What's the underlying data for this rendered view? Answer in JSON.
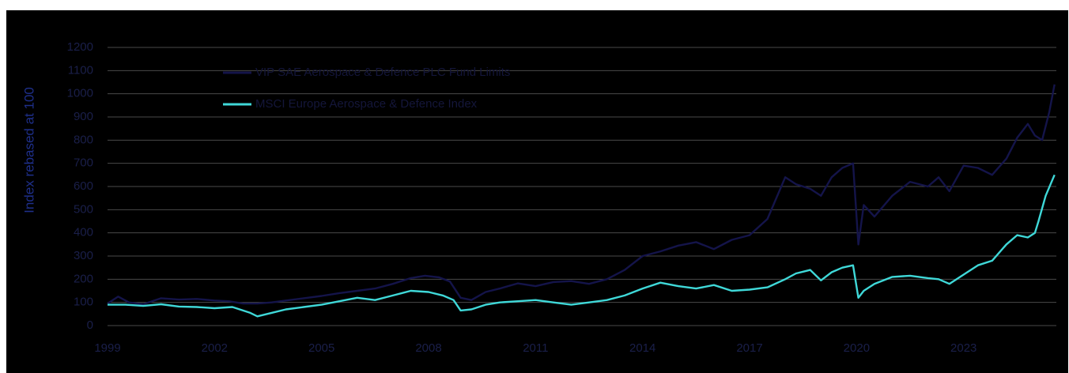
{
  "chart_data": {
    "type": "line",
    "title": "",
    "xlabel": "",
    "ylabel": "Index rebased at 100",
    "ylim": [
      0,
      1200
    ],
    "yticks": [
      0,
      100,
      200,
      300,
      400,
      500,
      600,
      700,
      800,
      900,
      1000,
      1100,
      1200
    ],
    "xlim": [
      1999.0,
      2025.6
    ],
    "xticks": [
      1999,
      2002,
      2005,
      2008,
      2011,
      2014,
      2017,
      2020,
      2023
    ],
    "grid": "horizontal",
    "legend_position": "top-left",
    "series": [
      {
        "name": "VIP SAE Aerospace & Defence PLC Fund Limits",
        "color": "#14144a",
        "x": [
          1999.0,
          1999.3,
          1999.6,
          2000.0,
          2000.5,
          2001.0,
          2001.5,
          2002.0,
          2002.4,
          2002.8,
          2003.2,
          2003.6,
          2004.0,
          2004.5,
          2005.0,
          2005.5,
          2006.0,
          2006.5,
          2007.0,
          2007.5,
          2007.9,
          2008.3,
          2008.6,
          2008.9,
          2009.2,
          2009.6,
          2010.0,
          2010.5,
          2011.0,
          2011.5,
          2012.0,
          2012.5,
          2013.0,
          2013.5,
          2014.0,
          2014.5,
          2015.0,
          2015.5,
          2016.0,
          2016.5,
          2017.0,
          2017.5,
          2018.0,
          2018.3,
          2018.7,
          2019.0,
          2019.3,
          2019.6,
          2019.9,
          2020.05,
          2020.2,
          2020.5,
          2021.0,
          2021.5,
          2022.0,
          2022.3,
          2022.6,
          2023.0,
          2023.4,
          2023.8,
          2024.2,
          2024.5,
          2024.8,
          2025.0,
          2025.2,
          2025.4,
          2025.55
        ],
        "y": [
          95,
          125,
          100,
          92,
          118,
          112,
          115,
          108,
          105,
          95,
          95,
          100,
          108,
          118,
          128,
          140,
          150,
          160,
          180,
          205,
          215,
          208,
          190,
          120,
          110,
          145,
          160,
          182,
          170,
          188,
          192,
          180,
          200,
          240,
          300,
          320,
          345,
          360,
          330,
          370,
          390,
          460,
          640,
          610,
          590,
          560,
          640,
          680,
          700,
          350,
          520,
          470,
          560,
          620,
          600,
          640,
          580,
          690,
          680,
          650,
          720,
          810,
          870,
          820,
          800,
          920,
          1040
        ]
      },
      {
        "name": "MSCI Europe Aerospace & Defence Index",
        "color": "#3fd8d8",
        "x": [
          1999.0,
          1999.5,
          2000.0,
          2000.5,
          2001.0,
          2001.5,
          2002.0,
          2002.5,
          2003.0,
          2003.2,
          2003.6,
          2004.0,
          2004.5,
          2005.0,
          2005.5,
          2006.0,
          2006.5,
          2007.0,
          2007.5,
          2008.0,
          2008.4,
          2008.7,
          2008.9,
          2009.2,
          2009.6,
          2010.0,
          2010.5,
          2011.0,
          2011.5,
          2012.0,
          2012.5,
          2013.0,
          2013.5,
          2014.0,
          2014.5,
          2015.0,
          2015.5,
          2016.0,
          2016.5,
          2017.0,
          2017.5,
          2018.0,
          2018.3,
          2018.7,
          2019.0,
          2019.3,
          2019.6,
          2019.9,
          2020.05,
          2020.2,
          2020.5,
          2021.0,
          2021.5,
          2022.0,
          2022.3,
          2022.6,
          2023.0,
          2023.4,
          2023.8,
          2024.2,
          2024.5,
          2024.8,
          2025.0,
          2025.1,
          2025.3,
          2025.55
        ],
        "y": [
          90,
          90,
          85,
          92,
          82,
          80,
          75,
          80,
          55,
          40,
          55,
          70,
          80,
          90,
          105,
          120,
          110,
          130,
          150,
          145,
          130,
          110,
          65,
          70,
          90,
          100,
          105,
          110,
          100,
          90,
          100,
          110,
          130,
          160,
          185,
          170,
          160,
          175,
          150,
          155,
          165,
          200,
          225,
          240,
          195,
          230,
          250,
          260,
          120,
          150,
          180,
          210,
          215,
          205,
          200,
          180,
          220,
          260,
          280,
          350,
          390,
          380,
          400,
          450,
          560,
          650
        ]
      }
    ]
  }
}
